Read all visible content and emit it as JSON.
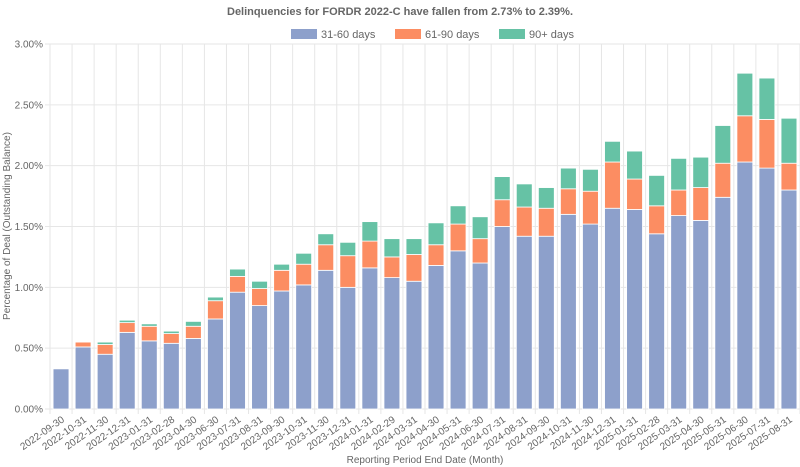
{
  "chart_data": {
    "type": "bar",
    "stacked": true,
    "title": "Delinquencies for FORDR 2022-C have fallen from 2.73% to 2.39%.",
    "xlabel": "Reporting Period End Date (Month)",
    "ylabel": "Percentage of Deal (Outstanding Balance)",
    "ylim": [
      0,
      3.0
    ],
    "yticks": [
      "0.00%",
      "0.50%",
      "1.00%",
      "1.50%",
      "2.00%",
      "2.50%",
      "3.00%"
    ],
    "ytick_values": [
      0,
      0.5,
      1.0,
      1.5,
      2.0,
      2.5,
      3.0
    ],
    "grid": true,
    "legend_position": "top-center",
    "categories": [
      "2022-09-30",
      "2022-10-31",
      "2022-11-30",
      "2022-12-31",
      "2023-01-31",
      "2023-02-28",
      "2023-04-30",
      "2023-06-30",
      "2023-07-31",
      "2023-08-31",
      "2023-09-30",
      "2023-10-31",
      "2023-11-30",
      "2023-12-31",
      "2024-01-31",
      "2024-02-29",
      "2024-03-31",
      "2024-04-30",
      "2024-05-31",
      "2024-06-30",
      "2024-07-31",
      "2024-08-31",
      "2024-09-30",
      "2024-10-31",
      "2024-11-30",
      "2024-12-31",
      "2025-01-31",
      "2025-02-28",
      "2025-03-31",
      "2025-04-30",
      "2025-05-31",
      "2025-06-30",
      "2025-07-31",
      "2025-08-31"
    ],
    "series": [
      {
        "name": "31-60 days",
        "color": "#8da0cb",
        "values": [
          0.33,
          0.51,
          0.45,
          0.63,
          0.56,
          0.54,
          0.58,
          0.74,
          0.96,
          0.85,
          0.97,
          1.02,
          1.14,
          1.0,
          1.16,
          1.08,
          1.05,
          1.18,
          1.3,
          1.2,
          1.5,
          1.42,
          1.42,
          1.6,
          1.52,
          1.65,
          1.64,
          1.44,
          1.59,
          1.55,
          1.74,
          2.03,
          1.98,
          1.8
        ]
      },
      {
        "name": "61-90 days",
        "color": "#fc8d62",
        "values": [
          0.0,
          0.04,
          0.08,
          0.08,
          0.12,
          0.08,
          0.1,
          0.15,
          0.13,
          0.14,
          0.17,
          0.17,
          0.21,
          0.26,
          0.22,
          0.17,
          0.22,
          0.17,
          0.22,
          0.2,
          0.22,
          0.24,
          0.23,
          0.21,
          0.27,
          0.38,
          0.25,
          0.23,
          0.21,
          0.27,
          0.28,
          0.38,
          0.4,
          0.22
        ]
      },
      {
        "name": "90+ days",
        "color": "#66c2a5",
        "values": [
          0.0,
          0.0,
          0.02,
          0.02,
          0.02,
          0.02,
          0.04,
          0.03,
          0.06,
          0.06,
          0.05,
          0.09,
          0.09,
          0.11,
          0.16,
          0.15,
          0.13,
          0.18,
          0.15,
          0.18,
          0.19,
          0.19,
          0.17,
          0.17,
          0.18,
          0.17,
          0.23,
          0.25,
          0.26,
          0.25,
          0.31,
          0.35,
          0.34,
          0.37
        ]
      }
    ]
  }
}
